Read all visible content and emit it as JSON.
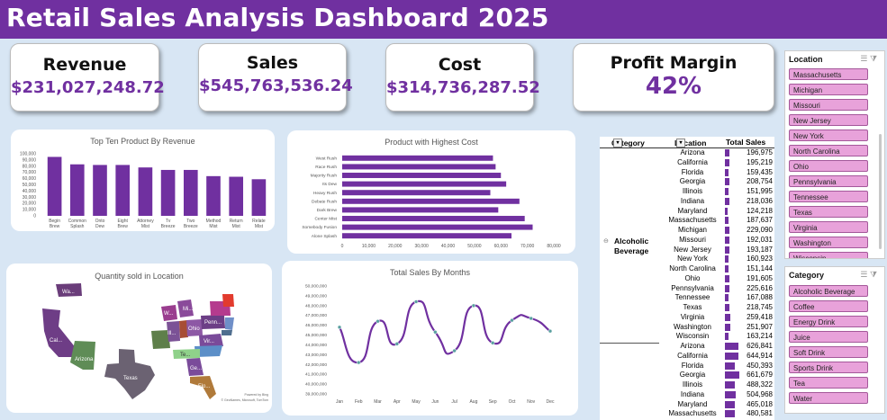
{
  "title": "Retail Sales Analysis Dashboard 2025",
  "kpis": [
    {
      "label": "Revenue",
      "value": "$231,027,248.72"
    },
    {
      "label": "Sales",
      "value": "$545,763,536.24"
    },
    {
      "label": "Cost",
      "value": "$314,736,287.52"
    },
    {
      "label": "Profit Margin",
      "value": "42%"
    }
  ],
  "chart_data": [
    {
      "type": "bar",
      "title": "Top Ten Product By Revenue",
      "categories": [
        "Begin Brew",
        "Common Splash",
        "Onto Dew",
        "Eight Brew",
        "Attorney Mist",
        "Tv Breeze",
        "Two Breeze",
        "Method Mist",
        "Return Mist",
        "Relate Mist"
      ],
      "values": [
        95000,
        83000,
        82000,
        82000,
        78000,
        74000,
        74000,
        64000,
        63000,
        59000
      ],
      "ylim": [
        0,
        100000
      ],
      "yticks": [
        "100,000",
        "90,000",
        "80,000",
        "70,000",
        "60,000",
        "50,000",
        "40,000",
        "30,000",
        "20,000",
        "10,000",
        "0"
      ],
      "color": "#7030a0"
    },
    {
      "type": "bar",
      "orientation": "horizontal",
      "title": "Product with Highest Cost",
      "categories": [
        "West Rush",
        "Race Rush",
        "Majority Rush",
        "Its Dew",
        "Heavy Rush",
        "Debate Rush",
        "Dark Brew",
        "Center Mist",
        "Somebody Fusion",
        "Alone Splash"
      ],
      "values": [
        57000,
        58000,
        60000,
        62000,
        56000,
        67000,
        59000,
        69000,
        72000,
        64000
      ],
      "xlim": [
        0,
        80000
      ],
      "xticks": [
        "0",
        "10,000",
        "20,000",
        "30,000",
        "40,000",
        "50,000",
        "60,000",
        "70,000",
        "80,000"
      ],
      "color": "#7030a0"
    },
    {
      "type": "line",
      "title": "Total Sales By Months",
      "categories": [
        "Jan",
        "Feb",
        "Mar",
        "Apr",
        "May",
        "Jun",
        "Jul",
        "Aug",
        "Sep",
        "Oct",
        "Nov",
        "Dec"
      ],
      "values": [
        45800000,
        42200000,
        46400000,
        44100000,
        48400000,
        45300000,
        43400000,
        48000000,
        44200000,
        46500000,
        46700000,
        45400000
      ],
      "ylim": [
        39000000,
        50000000
      ],
      "yticks": [
        "50,000,000",
        "49,000,000",
        "48,000,000",
        "47,000,000",
        "46,000,000",
        "45,000,000",
        "44,000,000",
        "43,000,000",
        "42,000,000",
        "41,000,000",
        "40,000,000",
        "39,000,000"
      ],
      "color": "#7030a0"
    }
  ],
  "map": {
    "title": "Quantity sold in Location",
    "labels": [
      "Wa...",
      "Cal...",
      "Arizona",
      "Texas",
      "W...",
      "Mi...",
      "Ill...",
      "Ohio",
      "Penn...",
      "Vir...",
      "Te...",
      "Ge...",
      "Flo..."
    ],
    "credit": [
      "Powered by Bing",
      "© GeoNames, Microsoft, TomTom"
    ]
  },
  "pivot": {
    "headers": {
      "category": "Category",
      "location": "Location",
      "total": "Total Sales"
    },
    "group": "Alcoholic Beverage",
    "rows": [
      {
        "loc": "Arizona",
        "val": "196,975",
        "n": 196975
      },
      {
        "loc": "California",
        "val": "195,219",
        "n": 195219
      },
      {
        "loc": "Florida",
        "val": "159,435",
        "n": 159435
      },
      {
        "loc": "Georgia",
        "val": "208,754",
        "n": 208754
      },
      {
        "loc": "Illinois",
        "val": "151,995",
        "n": 151995
      },
      {
        "loc": "Indiana",
        "val": "218,036",
        "n": 218036
      },
      {
        "loc": "Maryland",
        "val": "124,218",
        "n": 124218
      },
      {
        "loc": "Massachusetts",
        "val": "187,637",
        "n": 187637
      },
      {
        "loc": "Michigan",
        "val": "229,090",
        "n": 229090
      },
      {
        "loc": "Missouri",
        "val": "192,031",
        "n": 192031
      },
      {
        "loc": "New Jersey",
        "val": "193,187",
        "n": 193187
      },
      {
        "loc": "New York",
        "val": "160,923",
        "n": 160923
      },
      {
        "loc": "North Carolina",
        "val": "151,144",
        "n": 151144
      },
      {
        "loc": "Ohio",
        "val": "191,605",
        "n": 191605
      },
      {
        "loc": "Pennsylvania",
        "val": "225,616",
        "n": 225616
      },
      {
        "loc": "Tennessee",
        "val": "167,088",
        "n": 167088
      },
      {
        "loc": "Texas",
        "val": "218,745",
        "n": 218745
      },
      {
        "loc": "Virginia",
        "val": "259,418",
        "n": 259418
      },
      {
        "loc": "Washington",
        "val": "251,907",
        "n": 251907
      },
      {
        "loc": "Wisconsin",
        "val": "163,214",
        "n": 163214
      },
      {
        "loc": "Arizona",
        "val": "626,841",
        "n": 626841
      },
      {
        "loc": "California",
        "val": "644,914",
        "n": 644914
      },
      {
        "loc": "Florida",
        "val": "450,393",
        "n": 450393
      },
      {
        "loc": "Georgia",
        "val": "661,679",
        "n": 661679
      },
      {
        "loc": "Illinois",
        "val": "488,322",
        "n": 488322
      },
      {
        "loc": "Indiana",
        "val": "504,968",
        "n": 504968
      },
      {
        "loc": "Maryland",
        "val": "465,018",
        "n": 465018
      },
      {
        "loc": "Massachusetts",
        "val": "480,581",
        "n": 480581
      }
    ]
  },
  "slicers": {
    "location": {
      "title": "Location",
      "items": [
        "Massachusetts",
        "Michigan",
        "Missouri",
        "New Jersey",
        "New York",
        "North Carolina",
        "Ohio",
        "Pennsylvania",
        "Tennessee",
        "Texas",
        "Virginia",
        "Washington",
        "Wisconsin"
      ]
    },
    "category": {
      "title": "Category",
      "items": [
        "Alcoholic Beverage",
        "Coffee",
        "Energy Drink",
        "Juice",
        "Soft Drink",
        "Sports Drink",
        "Tea",
        "Water"
      ]
    },
    "icons": [
      "multi-select-icon",
      "clear-filter-icon"
    ]
  }
}
